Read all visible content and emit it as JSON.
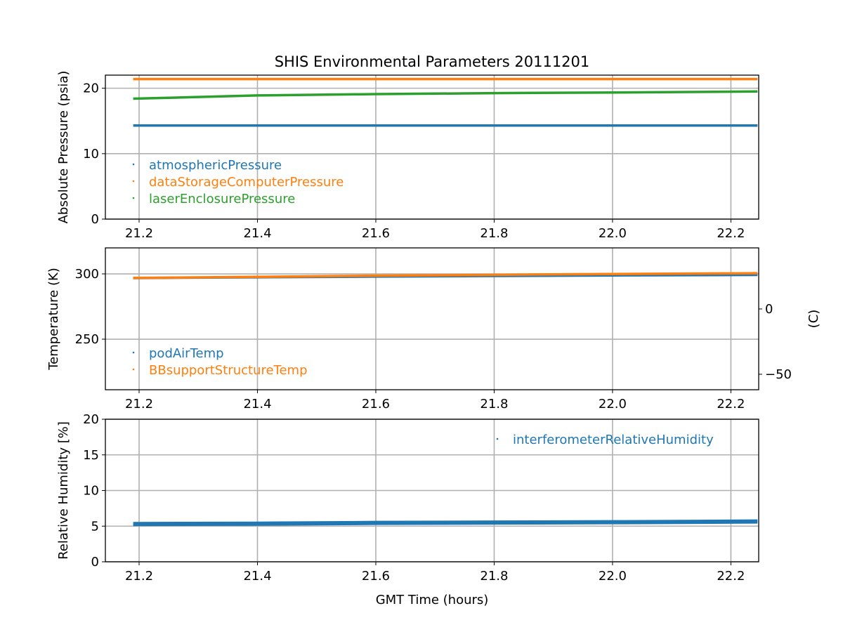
{
  "chart_data": [
    {
      "type": "scatter",
      "title": "SHIS Environmental Parameters 20111201",
      "xlabel": "",
      "ylabel": "Absolute Pressure (psia)",
      "xlim": [
        21.143,
        22.247
      ],
      "ylim": [
        0,
        22
      ],
      "xticks": [
        21.2,
        21.4,
        21.6,
        21.8,
        22.0,
        22.2
      ],
      "xtick_labels": [
        "21.2",
        "21.4",
        "21.6",
        "21.8",
        "22.0",
        "22.2"
      ],
      "yticks": [
        0,
        10,
        20
      ],
      "ytick_labels": [
        "0",
        "10",
        "20"
      ],
      "grid": true,
      "legend": "lower-left",
      "x": [
        21.19,
        21.4,
        21.6,
        21.8,
        22.0,
        22.245
      ],
      "series": [
        {
          "name": "atmosphericPressure",
          "color": "#1f77b4",
          "values": [
            14.3,
            14.3,
            14.3,
            14.3,
            14.3,
            14.3
          ]
        },
        {
          "name": "dataStorageComputerPressure",
          "color": "#ff7f0e",
          "values": [
            21.4,
            21.4,
            21.4,
            21.4,
            21.4,
            21.4
          ]
        },
        {
          "name": "laserEnclosurePressure",
          "color": "#2ca02c",
          "values": [
            18.4,
            18.9,
            19.1,
            19.25,
            19.35,
            19.5
          ]
        }
      ]
    },
    {
      "type": "scatter",
      "ylabel": "Temperature (K)",
      "ylabel_right": "(C)",
      "xlim": [
        21.143,
        22.247
      ],
      "ylim": [
        211.3,
        319.9
      ],
      "xticks": [
        21.2,
        21.4,
        21.6,
        21.8,
        22.0,
        22.2
      ],
      "xtick_labels": [
        "21.2",
        "21.4",
        "21.6",
        "21.8",
        "22.0",
        "22.2"
      ],
      "yticks": [
        250,
        300
      ],
      "ytick_labels": [
        "250",
        "300"
      ],
      "yticks_right_c": [
        -50,
        0
      ],
      "ytick_labels_right": [
        "−50",
        "0"
      ],
      "grid": true,
      "legend": "lower-left",
      "x": [
        21.19,
        21.4,
        21.6,
        21.8,
        22.0,
        22.245
      ],
      "series": [
        {
          "name": "podAirTemp",
          "color": "#1f77b4",
          "values": [
            296.8,
            297.4,
            297.9,
            298.4,
            298.8,
            299.2
          ]
        },
        {
          "name": "BBsupportStructureTemp",
          "color": "#ff7f0e",
          "values": [
            296.9,
            297.7,
            298.6,
            299.3,
            299.9,
            300.5
          ]
        }
      ]
    },
    {
      "type": "scatter",
      "xlabel": "GMT Time (hours)",
      "ylabel": "Relative Humidity [%]",
      "xlim": [
        21.143,
        22.247
      ],
      "ylim": [
        0,
        20
      ],
      "xticks": [
        21.2,
        21.4,
        21.6,
        21.8,
        22.0,
        22.2
      ],
      "xtick_labels": [
        "21.2",
        "21.4",
        "21.6",
        "21.8",
        "22.0",
        "22.2"
      ],
      "yticks": [
        0,
        5,
        10,
        15,
        20
      ],
      "ytick_labels": [
        "0",
        "5",
        "10",
        "15",
        "20"
      ],
      "grid": true,
      "legend": "upper-right",
      "x": [
        21.19,
        21.4,
        21.6,
        21.8,
        22.0,
        22.245
      ],
      "series": [
        {
          "name": "interferometerRelativeHumidity",
          "color": "#1f77b4",
          "values": [
            5.3,
            5.35,
            5.45,
            5.5,
            5.55,
            5.65
          ]
        }
      ]
    }
  ]
}
